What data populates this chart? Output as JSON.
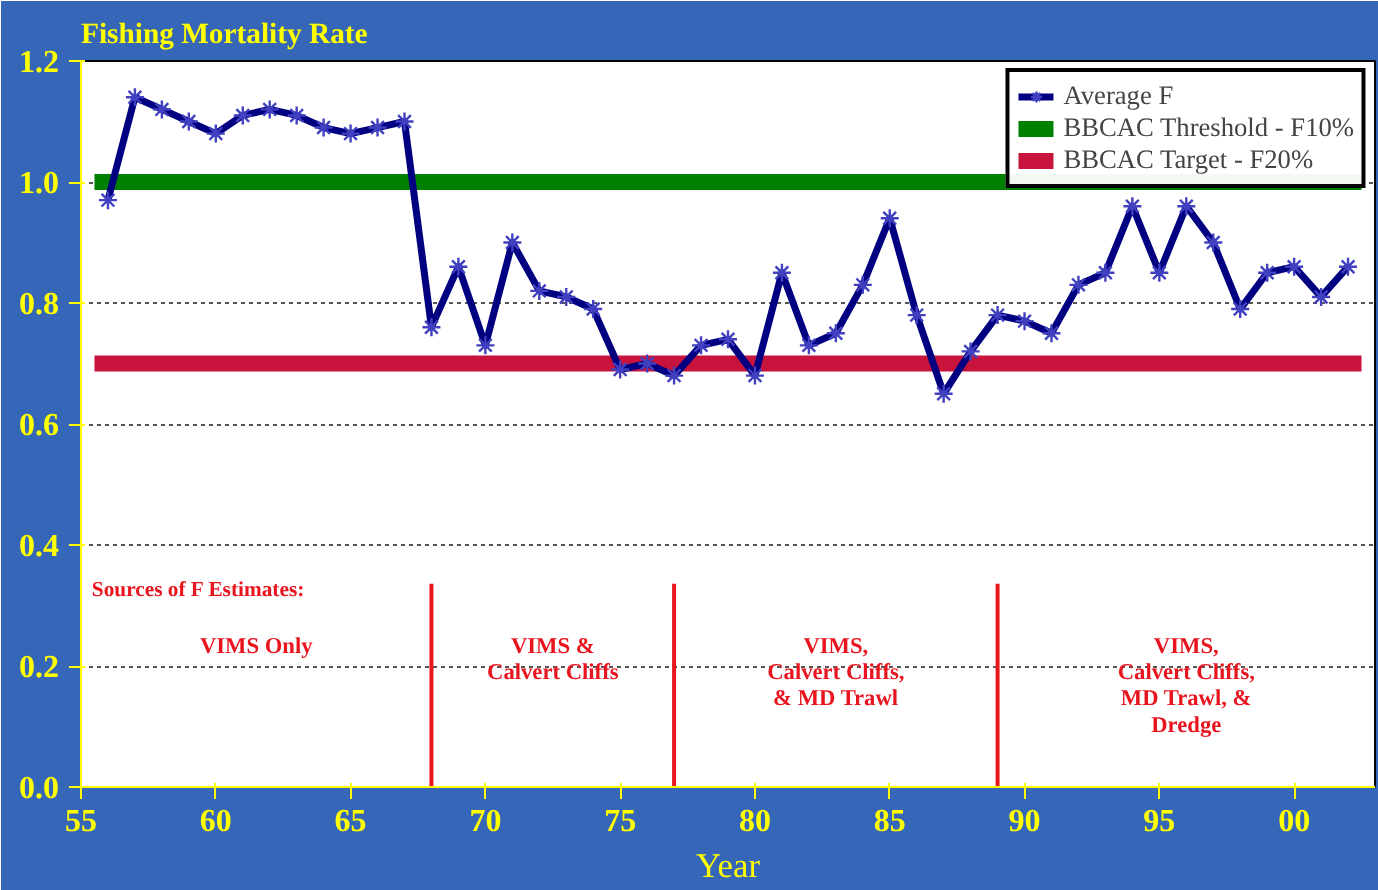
{
  "chart_data": {
    "type": "line",
    "title": "Fishing Mortality Rate",
    "xlabel": "Year",
    "x": [
      1956,
      1957,
      1958,
      1959,
      1960,
      1961,
      1962,
      1963,
      1964,
      1965,
      1966,
      1967,
      1968,
      1969,
      1970,
      1971,
      1972,
      1973,
      1974,
      1975,
      1976,
      1977,
      1978,
      1979,
      1980,
      1981,
      1982,
      1983,
      1984,
      1985,
      1986,
      1987,
      1988,
      1989,
      1990,
      1991,
      1992,
      1993,
      1994,
      1995,
      1996,
      1997,
      1998,
      1999,
      2000,
      2001,
      2002
    ],
    "series": [
      {
        "name": "Average F",
        "color": "#000080",
        "values": [
          0.97,
          1.14,
          1.12,
          1.1,
          1.08,
          1.11,
          1.12,
          1.11,
          1.09,
          1.08,
          1.09,
          1.1,
          0.76,
          0.86,
          0.73,
          0.9,
          0.82,
          0.81,
          0.79,
          0.69,
          0.7,
          0.68,
          0.73,
          0.74,
          0.68,
          0.85,
          0.73,
          0.75,
          0.83,
          0.94,
          0.78,
          0.65,
          0.72,
          0.78,
          0.77,
          0.75,
          0.83,
          0.85,
          0.96,
          0.85,
          0.96,
          0.9,
          0.79,
          0.85,
          0.86,
          0.81,
          0.86
        ]
      }
    ],
    "xlim": [
      1955,
      2003
    ],
    "xticks": [
      {
        "value": 1955,
        "label": "55"
      },
      {
        "value": 1960,
        "label": "60"
      },
      {
        "value": 1965,
        "label": "65"
      },
      {
        "value": 1970,
        "label": "70"
      },
      {
        "value": 1975,
        "label": "75"
      },
      {
        "value": 1980,
        "label": "80"
      },
      {
        "value": 1985,
        "label": "85"
      },
      {
        "value": 1990,
        "label": "90"
      },
      {
        "value": 1995,
        "label": "95"
      },
      {
        "value": 2000,
        "label": "00"
      }
    ],
    "ylim": [
      0,
      1.2
    ],
    "yticks": [
      {
        "value": 0,
        "label": "0.0"
      },
      {
        "value": 0.2,
        "label": "0.2"
      },
      {
        "value": 0.4,
        "label": "0.4"
      },
      {
        "value": 0.6,
        "label": "0.6"
      },
      {
        "value": 0.8,
        "label": "0.8"
      },
      {
        "value": 1,
        "label": "1.0"
      },
      {
        "value": 1.2,
        "label": "1.2"
      }
    ],
    "ref_lines": [
      {
        "axis": "y",
        "value": 1.0,
        "label": "BBCAC Threshold - F10%",
        "color": "#008000"
      },
      {
        "axis": "y",
        "value": 0.7,
        "label": "BBCAC Target - F20%",
        "color": "#c8143c"
      },
      {
        "axis": "x",
        "value": 1968,
        "color": "#e8141e"
      },
      {
        "axis": "x",
        "value": 1977,
        "color": "#e8141e"
      },
      {
        "axis": "x",
        "value": 1989,
        "color": "#e8141e"
      }
    ],
    "annotations": [
      "Sources of F Estimates:",
      "VIMS Only",
      "VIMS &\nCalvert Cliffs",
      "VIMS,\nCalvert Cliffs,\n& MD Trawl",
      "VIMS,\nCalvert Cliffs,\nMD Trawl, &\nDredge"
    ],
    "grid": "y",
    "legend": "top right",
    "marker": "cross",
    "line_style": "solid"
  }
}
